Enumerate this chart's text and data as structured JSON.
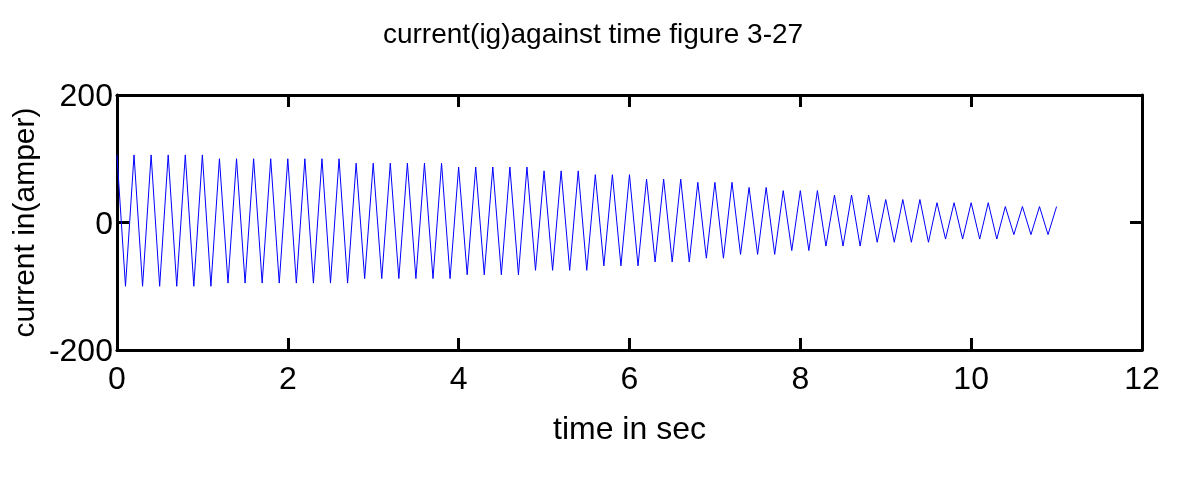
{
  "chart_data": {
    "type": "line",
    "title": "current(ig)against time figure 3-27",
    "xlabel": "time in sec",
    "ylabel": "current in(amper)",
    "x": [
      0,
      0.1,
      0.2,
      0.3,
      0.4,
      0.5,
      0.6,
      0.7,
      0.8,
      0.9,
      1.0,
      1.1,
      1.2,
      1.3,
      1.4,
      1.5,
      1.6,
      1.7,
      1.8,
      1.9,
      2.0,
      2.1,
      2.2,
      2.3,
      2.4,
      2.5,
      2.6,
      2.7,
      2.8,
      2.9,
      3.0,
      3.1,
      3.2,
      3.3,
      3.4,
      3.5,
      3.6,
      3.7,
      3.8,
      3.9,
      4.0,
      4.1,
      4.2,
      4.3,
      4.4,
      4.5,
      4.6,
      4.7,
      4.8,
      4.9,
      5.0,
      5.1,
      5.2,
      5.3,
      5.4,
      5.5,
      5.6,
      5.7,
      5.8,
      5.9,
      6.0,
      6.1,
      6.2,
      6.3,
      6.4,
      6.5,
      6.6,
      6.7,
      6.8,
      6.9,
      7.0,
      7.1,
      7.2,
      7.3,
      7.4,
      7.5,
      7.6,
      7.7,
      7.8,
      7.9,
      8.0,
      8.1,
      8.2,
      8.3,
      8.4,
      8.5,
      8.6,
      8.7,
      8.8,
      8.9,
      9.0,
      9.1,
      9.2,
      9.3,
      9.4,
      9.5,
      9.6,
      9.7,
      9.8,
      9.9,
      10.0,
      10.1,
      10.2,
      10.3,
      10.4,
      10.5,
      10.6,
      10.7,
      10.8,
      10.9,
      11.0
    ],
    "series": [
      {
        "color": "#0000ff",
        "values": [
          106,
          -100,
          106,
          -100,
          106,
          -100,
          106,
          -100,
          106,
          -100,
          106,
          -100,
          100,
          -95,
          100,
          -95,
          100,
          -95,
          100,
          -95,
          100,
          -95,
          100,
          -95,
          100,
          -95,
          100,
          -95,
          93,
          -88,
          93,
          -88,
          93,
          -88,
          93,
          -88,
          93,
          -88,
          93,
          -88,
          87,
          -82,
          87,
          -82,
          87,
          -82,
          87,
          -82,
          87,
          -75,
          81,
          -75,
          81,
          -75,
          81,
          -75,
          75,
          -68,
          75,
          -68,
          75,
          -68,
          68,
          -62,
          68,
          -62,
          68,
          -62,
          63,
          -56,
          63,
          -56,
          63,
          -50,
          55,
          -50,
          55,
          -50,
          50,
          -44,
          50,
          -44,
          50,
          -37,
          43,
          -37,
          43,
          -37,
          43,
          -31,
          36,
          -31,
          36,
          -31,
          36,
          -31,
          31,
          -26,
          31,
          -26,
          31,
          -26,
          31,
          -26,
          25,
          -19,
          25,
          -19,
          25,
          -19,
          25
        ]
      }
    ],
    "xlim": [
      0,
      12
    ],
    "xticks": [
      0,
      2,
      4,
      6,
      8,
      10,
      12
    ],
    "ylim": [
      -200,
      200
    ],
    "yticks": [
      -200,
      0,
      200
    ],
    "grid": false,
    "marker": "none",
    "line_style": "solid"
  }
}
